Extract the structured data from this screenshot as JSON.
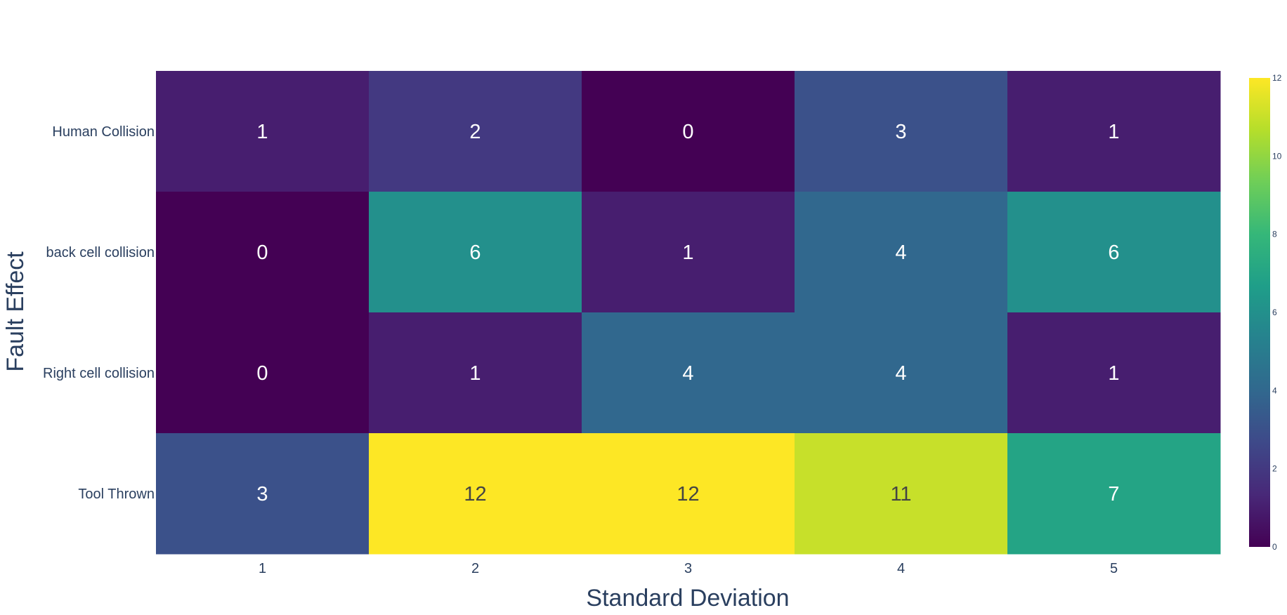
{
  "chart_data": {
    "type": "heatmap",
    "title": "",
    "xlabel": "Standard Deviation",
    "ylabel": "Fault Effect",
    "x_categories": [
      "1",
      "2",
      "3",
      "4",
      "5"
    ],
    "y_categories": [
      "Human Collision",
      "back cell collision",
      "Right cell collision",
      "Tool Thrown"
    ],
    "z": [
      [
        1,
        2,
        0,
        3,
        1
      ],
      [
        0,
        6,
        1,
        4,
        6
      ],
      [
        0,
        1,
        4,
        4,
        1
      ],
      [
        3,
        12,
        12,
        11,
        7
      ]
    ],
    "zlim": [
      0,
      12
    ],
    "colorscale": "Viridis",
    "colorbar_ticks": [
      "0",
      "2",
      "4",
      "6",
      "8",
      "10",
      "12"
    ],
    "colorbar_tick_values": [
      0,
      2,
      4,
      6,
      8,
      10,
      12
    ],
    "cell_labels_shown": true,
    "grid": false
  }
}
